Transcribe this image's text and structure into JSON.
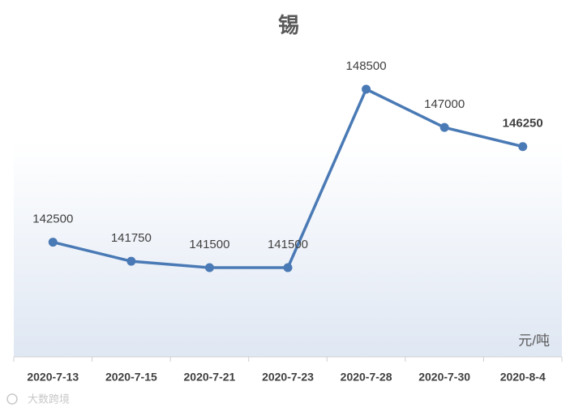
{
  "chart_data": {
    "type": "line",
    "title": "锡",
    "categories": [
      "2020-7-13",
      "2020-7-15",
      "2020-7-21",
      "2020-7-23",
      "2020-7-28",
      "2020-7-30",
      "2020-8-4"
    ],
    "series": [
      {
        "name": "锡",
        "color": "#4a7ab5",
        "values": [
          142500,
          141750,
          141500,
          141500,
          148500,
          147000,
          146250
        ]
      }
    ],
    "unit_label": "元/吨",
    "watermark": "大数跨境"
  }
}
